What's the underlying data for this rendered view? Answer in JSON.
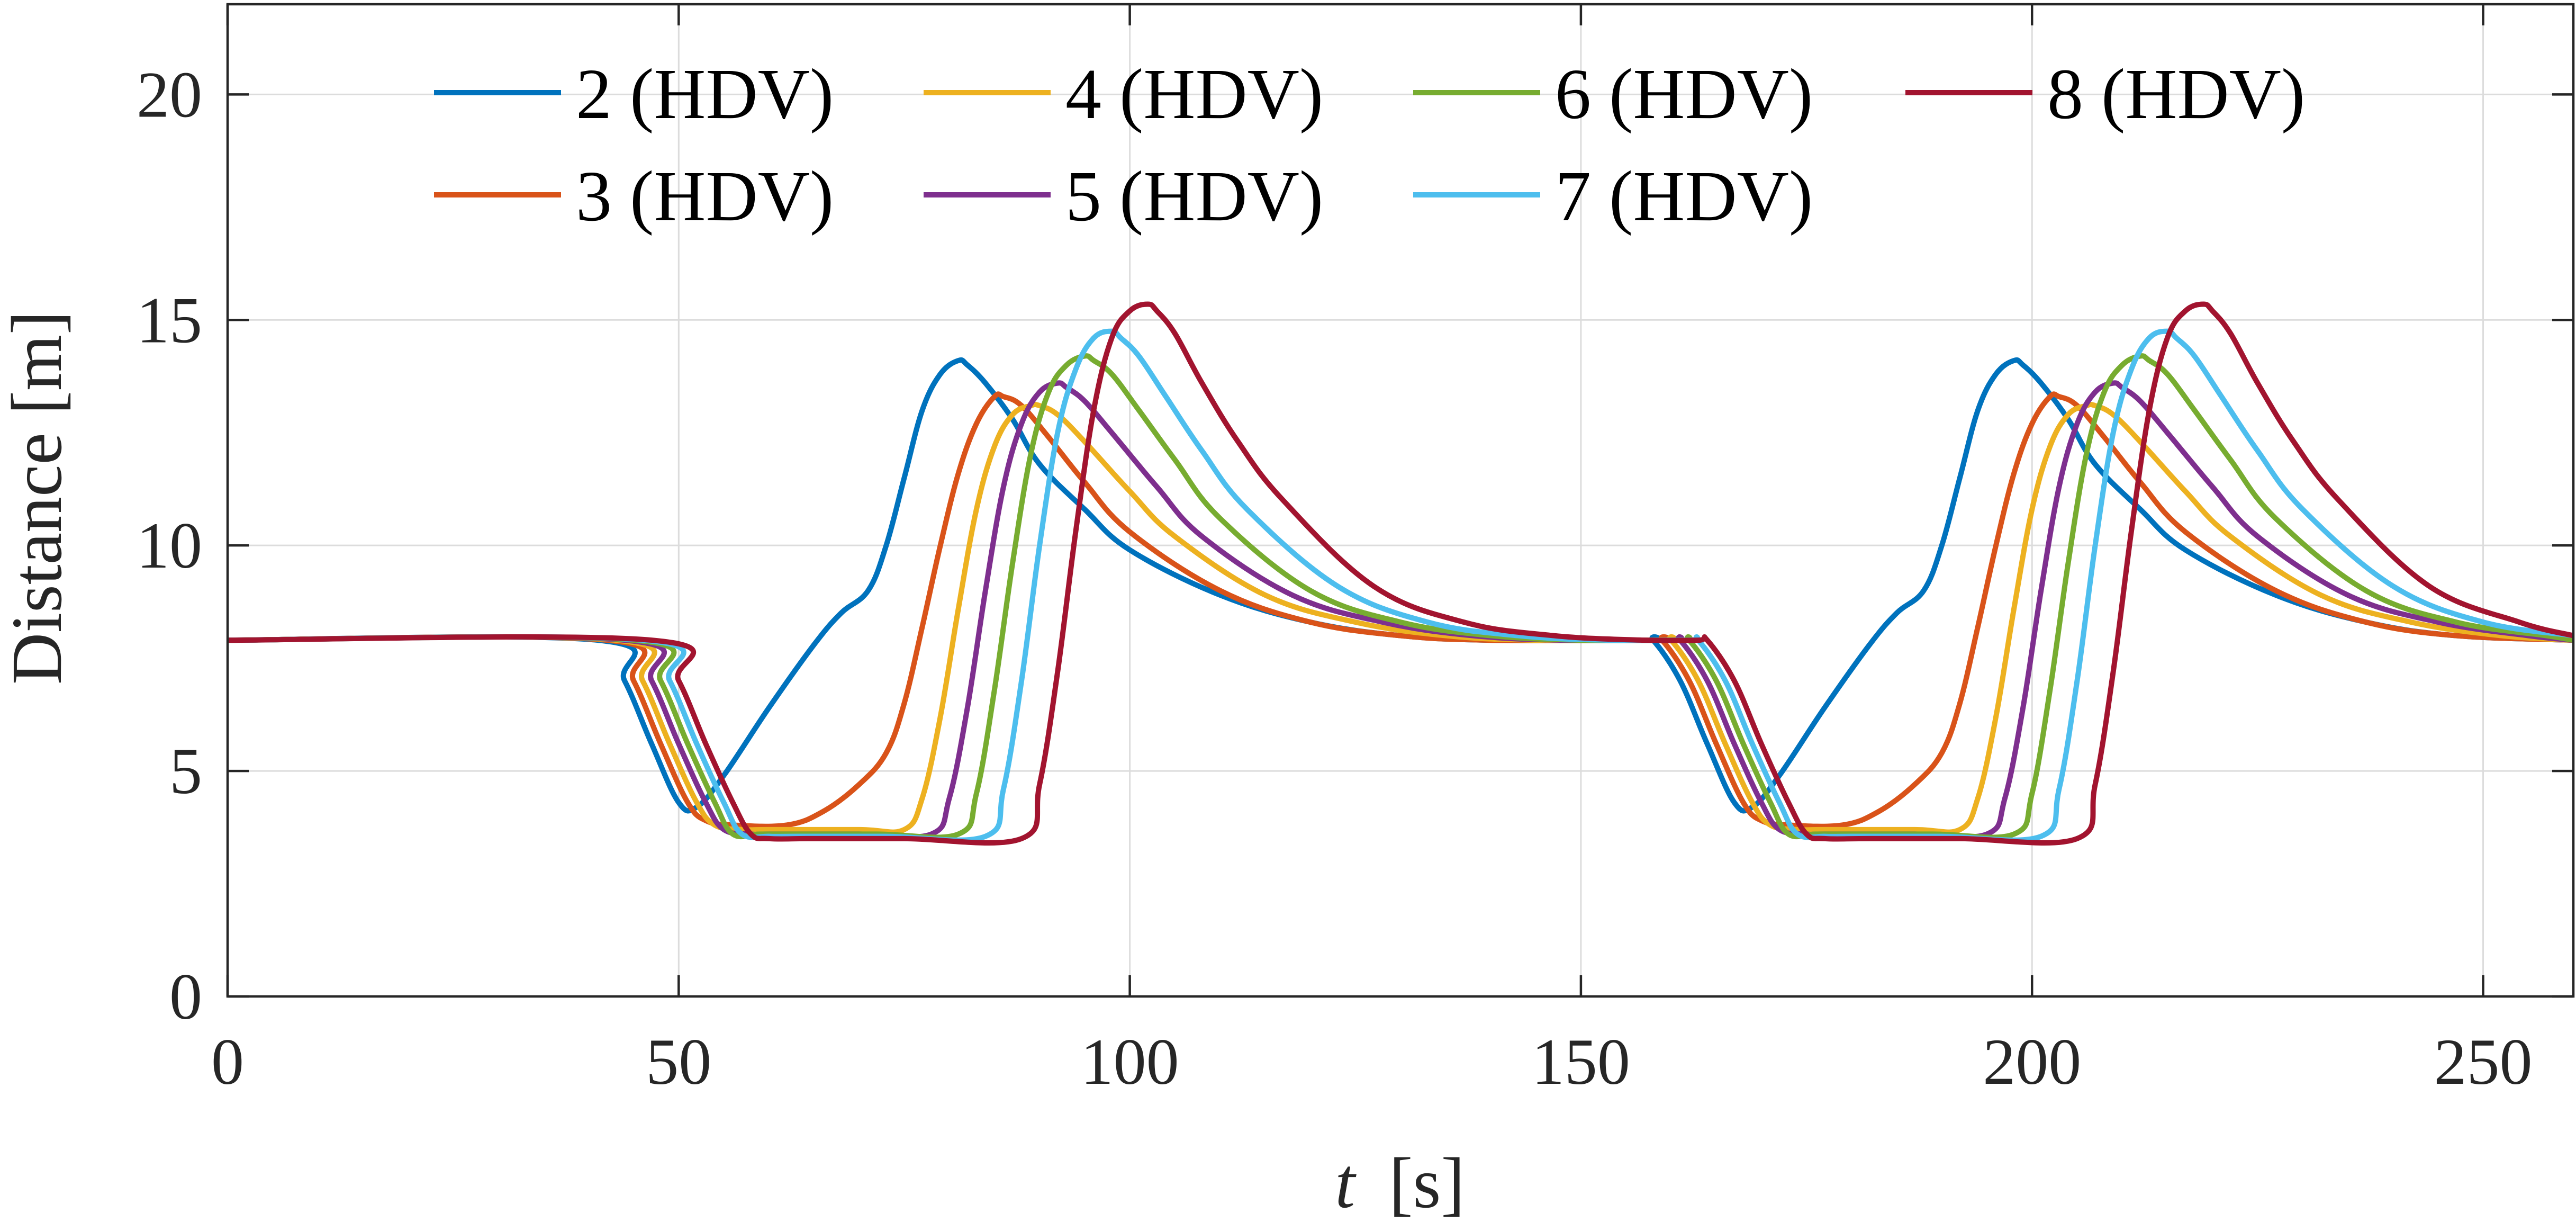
{
  "chart_data": {
    "type": "line",
    "title": "",
    "xlabel_var": "t",
    "xlabel_unit": "[s]",
    "ylabel": "Distance [m]",
    "xlim": [
      0,
      260
    ],
    "ylim": [
      0,
      22
    ],
    "xticks": [
      0,
      50,
      100,
      150,
      200,
      250
    ],
    "yticks": [
      0,
      5,
      10,
      15,
      20
    ],
    "grid": true,
    "legend_location": "top",
    "series": [
      {
        "name": "2 (HDV)",
        "color": "#0072BD",
        "x": [
          0,
          41,
          44,
          47,
          50,
          52,
          55,
          60,
          65,
          68,
          71,
          73,
          75,
          77,
          79,
          81,
          82,
          84,
          87,
          90,
          95,
          100,
          110,
          120,
          130,
          140,
          157,
          158,
          161,
          164,
          167,
          169,
          172,
          177,
          182,
          185,
          188,
          190,
          192,
          194,
          196,
          198,
          199,
          201,
          204,
          207,
          212,
          217,
          227,
          237,
          247,
          260
        ],
        "y": [
          7.9,
          7.9,
          7.0,
          5.6,
          4.3,
          4.2,
          4.9,
          6.4,
          7.8,
          8.5,
          9.0,
          10.0,
          11.5,
          13.0,
          13.8,
          14.1,
          14.0,
          13.6,
          12.8,
          11.8,
          10.8,
          9.9,
          8.9,
          8.3,
          8.0,
          7.9,
          7.9,
          7.9,
          7.0,
          5.6,
          4.3,
          4.2,
          4.9,
          6.4,
          7.8,
          8.5,
          9.0,
          10.0,
          11.5,
          13.0,
          13.8,
          14.1,
          14.0,
          13.6,
          12.8,
          11.8,
          10.8,
          9.9,
          8.9,
          8.3,
          8.0,
          7.9
        ]
      },
      {
        "name": "3 (HDV)",
        "color": "#D95319",
        "x": [
          0,
          42,
          45,
          48,
          51,
          53,
          56,
          62,
          66,
          70,
          73,
          75,
          77,
          79,
          81,
          83,
          85,
          86,
          88,
          91,
          95,
          100,
          110,
          120,
          130,
          140,
          158,
          159,
          162,
          165,
          168,
          170,
          173,
          179,
          183,
          187,
          190,
          192,
          194,
          196,
          198,
          200,
          202,
          203,
          205,
          208,
          212,
          217,
          227,
          237,
          247,
          260
        ],
        "y": [
          7.9,
          7.9,
          7.0,
          5.6,
          4.3,
          3.9,
          3.8,
          3.8,
          4.1,
          4.7,
          5.4,
          6.5,
          8.2,
          10.0,
          11.6,
          12.7,
          13.3,
          13.3,
          13.1,
          12.4,
          11.4,
          10.3,
          9.0,
          8.3,
          8.0,
          7.9,
          7.9,
          7.9,
          7.0,
          5.6,
          4.3,
          3.9,
          3.8,
          3.8,
          4.1,
          4.7,
          5.4,
          6.5,
          8.2,
          10.0,
          11.6,
          12.7,
          13.3,
          13.3,
          13.1,
          12.4,
          11.4,
          10.3,
          9.0,
          8.3,
          8.0,
          7.9
        ]
      },
      {
        "name": "4 (HDV)",
        "color": "#EDB120",
        "x": [
          0,
          43,
          46,
          49,
          52,
          54,
          57,
          60,
          70,
          75,
          77,
          79,
          81,
          83,
          85,
          87,
          89,
          90,
          92,
          95,
          100,
          105,
          115,
          125,
          135,
          145,
          159,
          160,
          163,
          166,
          169,
          171,
          174,
          177,
          187,
          192,
          194,
          196,
          198,
          200,
          202,
          204,
          206,
          207,
          209,
          212,
          217,
          222,
          232,
          242,
          252,
          260
        ],
        "y": [
          7.9,
          7.9,
          7.0,
          5.6,
          4.3,
          3.8,
          3.7,
          3.7,
          3.7,
          3.7,
          4.4,
          6.2,
          8.6,
          10.8,
          12.2,
          12.9,
          13.1,
          13.1,
          12.9,
          12.3,
          11.2,
          10.2,
          8.9,
          8.3,
          8.0,
          7.9,
          7.9,
          7.9,
          7.0,
          5.6,
          4.3,
          3.8,
          3.7,
          3.7,
          3.7,
          3.7,
          4.4,
          6.2,
          8.6,
          10.8,
          12.2,
          12.9,
          13.1,
          13.1,
          12.9,
          12.3,
          11.2,
          10.2,
          8.9,
          8.3,
          8.0,
          7.9
        ]
      },
      {
        "name": "5 (HDV)",
        "color": "#7E2F8E",
        "x": [
          0,
          44,
          47,
          50,
          53,
          55,
          58,
          60,
          70,
          78,
          80,
          82,
          84,
          86,
          88,
          90,
          92,
          93,
          95,
          98,
          103,
          108,
          118,
          128,
          138,
          148,
          160,
          161,
          164,
          167,
          170,
          172,
          175,
          177,
          187,
          195,
          197,
          199,
          201,
          203,
          205,
          207,
          209,
          210,
          212,
          215,
          220,
          225,
          235,
          245,
          255,
          260
        ],
        "y": [
          7.9,
          7.9,
          7.0,
          5.6,
          4.3,
          3.7,
          3.6,
          3.6,
          3.6,
          3.6,
          4.4,
          6.4,
          9.0,
          11.3,
          12.7,
          13.4,
          13.6,
          13.5,
          13.2,
          12.5,
          11.3,
          10.2,
          8.9,
          8.3,
          8.0,
          7.9,
          7.9,
          7.9,
          7.0,
          5.6,
          4.3,
          3.7,
          3.6,
          3.6,
          3.6,
          3.6,
          4.4,
          6.4,
          9.0,
          11.3,
          12.7,
          13.4,
          13.6,
          13.5,
          13.2,
          12.5,
          11.3,
          10.2,
          8.9,
          8.3,
          8.0,
          7.9
        ]
      },
      {
        "name": "6 (HDV)",
        "color": "#77AC30",
        "x": [
          0,
          45,
          48,
          51,
          54,
          56,
          59,
          62,
          72,
          81,
          83,
          85,
          87,
          89,
          91,
          93,
          95,
          96,
          98,
          101,
          105,
          110,
          120,
          130,
          140,
          150,
          161,
          162,
          165,
          168,
          171,
          173,
          176,
          179,
          189,
          198,
          200,
          202,
          204,
          206,
          208,
          210,
          212,
          213,
          215,
          218,
          222,
          227,
          237,
          247,
          257,
          260
        ],
        "y": [
          7.9,
          7.9,
          7.0,
          5.6,
          4.3,
          3.6,
          3.6,
          3.6,
          3.6,
          3.6,
          4.5,
          6.8,
          9.6,
          12.0,
          13.4,
          14.0,
          14.2,
          14.1,
          13.8,
          13.0,
          11.9,
          10.6,
          9.0,
          8.3,
          8.0,
          7.9,
          7.9,
          7.9,
          7.0,
          5.6,
          4.3,
          3.6,
          3.6,
          3.6,
          3.6,
          3.6,
          4.5,
          6.8,
          9.6,
          12.0,
          13.4,
          14.0,
          14.2,
          14.1,
          13.8,
          13.0,
          11.9,
          10.6,
          9.0,
          8.3,
          8.0,
          7.9
        ]
      },
      {
        "name": "7 (HDV)",
        "color": "#4DBEEE",
        "x": [
          0,
          46,
          49,
          52,
          55,
          57,
          60,
          63,
          73,
          84,
          86,
          88,
          90,
          92,
          94,
          96,
          98,
          99,
          101,
          104,
          108,
          113,
          123,
          133,
          143,
          153,
          162,
          163,
          166,
          169,
          172,
          174,
          177,
          180,
          190,
          201,
          203,
          205,
          207,
          209,
          211,
          213,
          215,
          216,
          218,
          221,
          225,
          230,
          240,
          250,
          260
        ],
        "y": [
          7.9,
          7.9,
          7.0,
          5.6,
          4.3,
          3.6,
          3.55,
          3.55,
          3.55,
          3.55,
          4.6,
          7.0,
          10.0,
          12.5,
          13.9,
          14.6,
          14.75,
          14.6,
          14.2,
          13.3,
          12.1,
          10.8,
          9.1,
          8.3,
          8.0,
          7.9,
          7.9,
          7.9,
          7.0,
          5.6,
          4.3,
          3.6,
          3.55,
          3.55,
          3.55,
          3.55,
          4.6,
          7.0,
          10.0,
          12.5,
          13.9,
          14.6,
          14.75,
          14.6,
          14.2,
          13.3,
          12.1,
          10.8,
          9.1,
          8.3,
          8.0
        ]
      },
      {
        "name": "8 (HDV)",
        "color": "#A2142F",
        "x": [
          0,
          47,
          50,
          53,
          56,
          58,
          60,
          65,
          75,
          88,
          90,
          92,
          94,
          96,
          98,
          100,
          102,
          103,
          105,
          108,
          112,
          117,
          127,
          137,
          147,
          157,
          163,
          164,
          167,
          170,
          173,
          175,
          177,
          182,
          192,
          205,
          207,
          209,
          211,
          213,
          215,
          217,
          219,
          220,
          222,
          225,
          229,
          234,
          244,
          254,
          260
        ],
        "y": [
          7.9,
          7.9,
          7.0,
          5.6,
          4.3,
          3.6,
          3.5,
          3.5,
          3.5,
          3.5,
          4.7,
          7.2,
          10.3,
          13.0,
          14.6,
          15.2,
          15.35,
          15.2,
          14.7,
          13.6,
          12.3,
          11.0,
          9.1,
          8.3,
          8.0,
          7.9,
          7.9,
          7.9,
          7.0,
          5.6,
          4.3,
          3.6,
          3.5,
          3.5,
          3.5,
          3.5,
          4.7,
          7.2,
          10.3,
          13.0,
          14.6,
          15.2,
          15.35,
          15.2,
          14.7,
          13.6,
          12.3,
          11.0,
          9.1,
          8.3,
          8.0
        ]
      }
    ]
  }
}
